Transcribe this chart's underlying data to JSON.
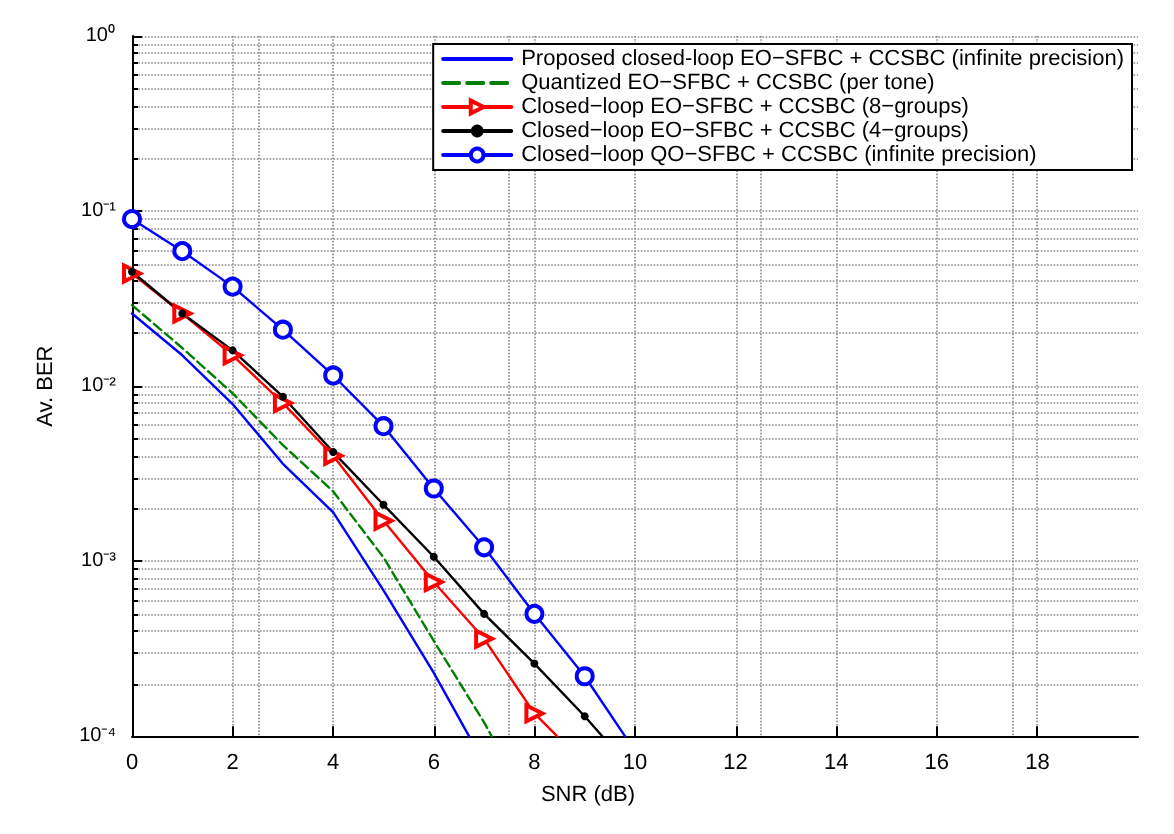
{
  "chart_data": {
    "type": "line",
    "xlabel": "SNR (dB)",
    "ylabel": "Av. BER",
    "log": "y",
    "grid": true,
    "legend": "top right",
    "xlim": [
      0,
      20
    ],
    "xticks": [
      0,
      2,
      4,
      6,
      8,
      10,
      12,
      14,
      16,
      18
    ],
    "ylim": [
      0.0001,
      1
    ],
    "yticks": [
      {
        "value": 0.0001,
        "label": "10⁻⁴"
      },
      {
        "value": 0.001,
        "label": "10⁻³"
      },
      {
        "value": 0.01,
        "label": "10⁻²"
      },
      {
        "value": 0.1,
        "label": "10⁻¹"
      },
      {
        "value": 1,
        "label": "10⁰"
      }
    ],
    "series": [
      {
        "name": "Proposed closed-loop EO−SFBC + CCSBC (infinite precision)",
        "color": "#0000ff",
        "marker": "none",
        "line_style": "solid",
        "x": [
          0,
          1,
          2,
          3,
          4,
          5,
          6,
          6.7
        ],
        "values": [
          0.026,
          0.015,
          0.0079,
          0.0036,
          0.0019,
          0.00068,
          0.00023,
          0.0001
        ]
      },
      {
        "name": "Quantized EO−SFBC + CCSBC (per tone)",
        "color": "#008000",
        "marker": "none",
        "line_style": "dashed",
        "x": [
          0,
          1,
          2,
          3,
          4,
          5,
          6,
          7,
          7.15
        ],
        "values": [
          0.029,
          0.0165,
          0.0091,
          0.0046,
          0.0025,
          0.00105,
          0.00035,
          0.00012,
          0.0001
        ]
      },
      {
        "name": "Closed−loop EO−SFBC + CCSBC (8−groups)",
        "color": "#ff0000",
        "marker": "triangle",
        "line_style": "solid",
        "x": [
          0,
          1,
          2,
          3,
          4,
          5,
          6,
          7,
          8,
          8.45
        ],
        "values": [
          0.044,
          0.026,
          0.015,
          0.008,
          0.004,
          0.0017,
          0.00076,
          0.00036,
          0.000135,
          0.0001
        ]
      },
      {
        "name": "Closed−loop EO−SFBC + CCSBC (4−groups)",
        "color": "#000000",
        "marker": "dot",
        "line_style": "solid",
        "x": [
          0,
          1,
          2,
          3,
          4,
          5,
          6,
          7,
          8,
          9,
          9.35
        ],
        "values": [
          0.045,
          0.026,
          0.016,
          0.0087,
          0.0042,
          0.0021,
          0.00106,
          0.0005,
          0.00026,
          0.00013,
          0.0001
        ]
      },
      {
        "name": "Closed−loop QO−SFBC + CCSBC (infinite precision)",
        "color": "#0000ff",
        "marker": "circle",
        "line_style": "solid",
        "x": [
          0,
          1,
          2,
          3,
          4,
          5,
          6,
          7,
          8,
          9,
          9.8
        ],
        "values": [
          0.09,
          0.059,
          0.037,
          0.021,
          0.0115,
          0.0059,
          0.0026,
          0.0012,
          0.0005,
          0.00022,
          0.0001
        ]
      }
    ]
  }
}
